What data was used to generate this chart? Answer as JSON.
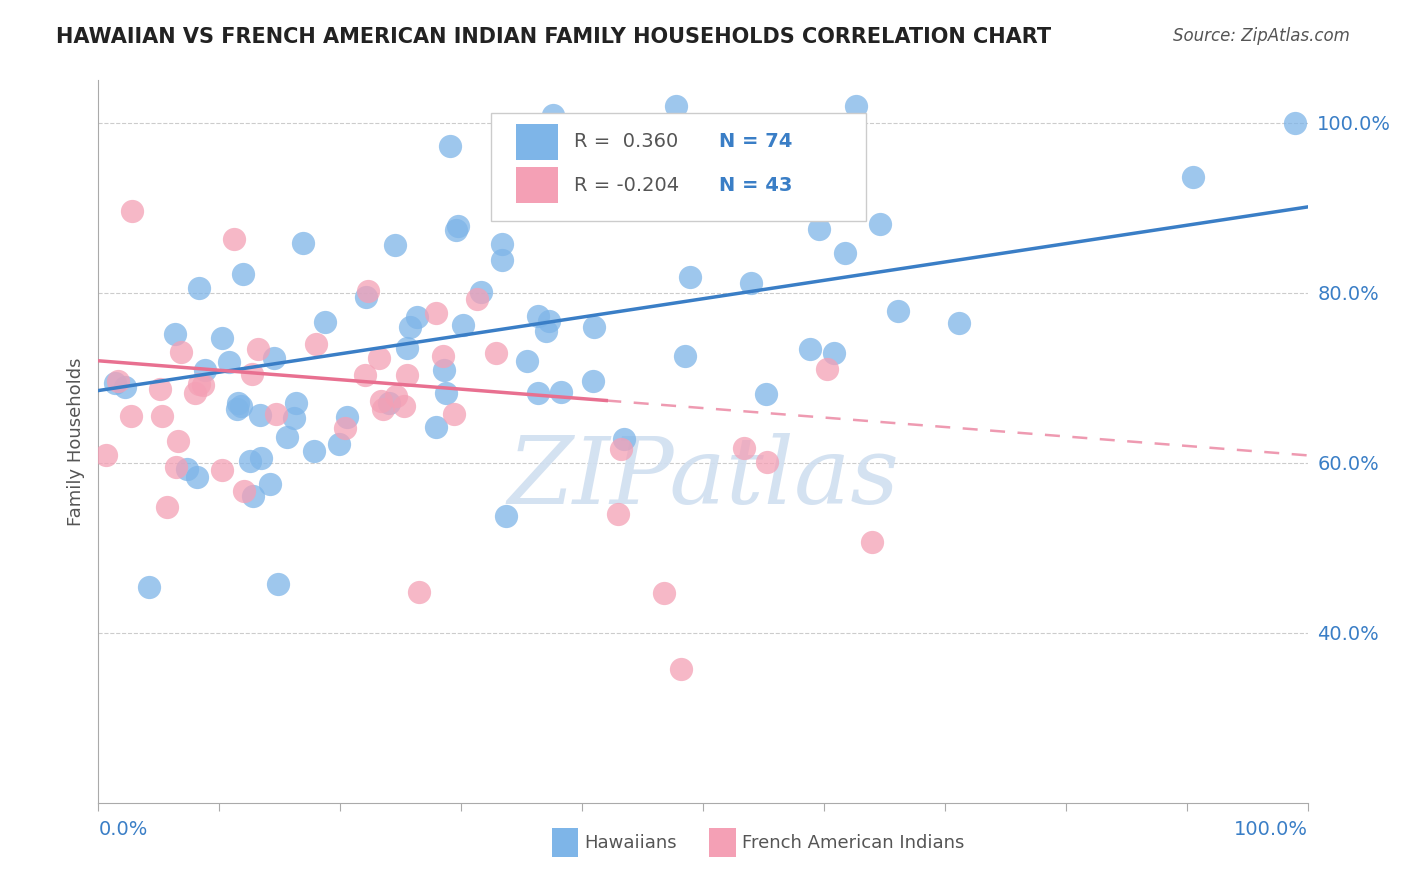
{
  "title": "HAWAIIAN VS FRENCH AMERICAN INDIAN FAMILY HOUSEHOLDS CORRELATION CHART",
  "source": "Source: ZipAtlas.com",
  "ylabel": "Family Households",
  "legend_label1": "Hawaiians",
  "legend_label2": "French American Indians",
  "R1": 0.36,
  "N1": 74,
  "R2": -0.204,
  "N2": 43,
  "blue_color": "#7EB5E8",
  "pink_color": "#F4A0B5",
  "blue_line_color": "#3A7EC6",
  "pink_line_color": "#E87090",
  "grid_color": "#CCCCCC",
  "watermark_color": "#D0DFF0",
  "right_tick_color": "#3A7EC6",
  "xlim": [
    0.0,
    1.0
  ],
  "ylim": [
    0.2,
    1.05
  ]
}
